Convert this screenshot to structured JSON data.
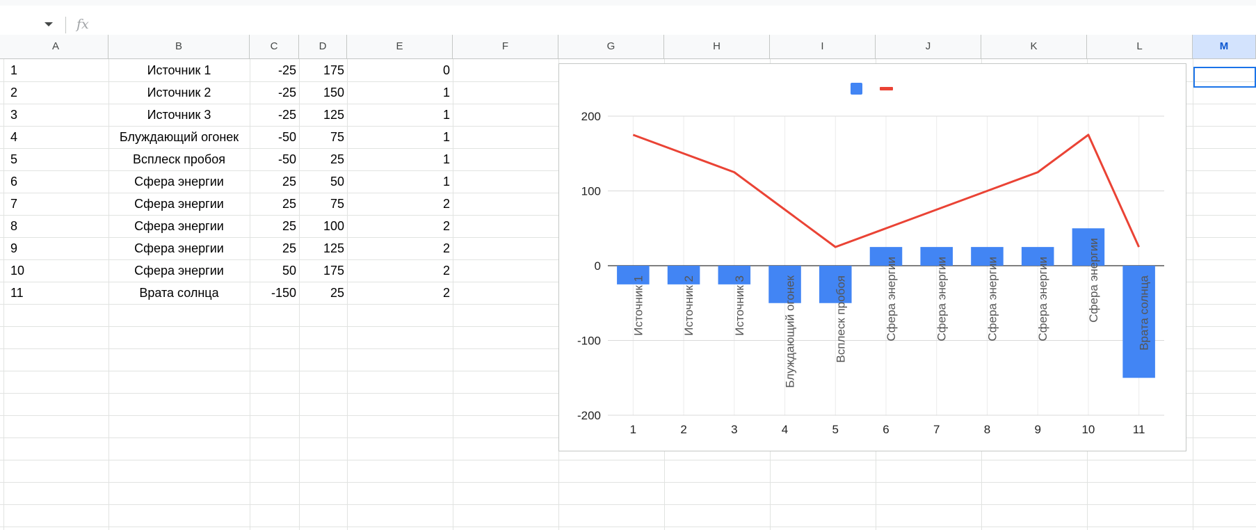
{
  "formula_bar": {
    "fx_label": "fx"
  },
  "columns": [
    "A",
    "B",
    "C",
    "D",
    "E",
    "F",
    "G",
    "H",
    "I",
    "J",
    "K",
    "L",
    "M"
  ],
  "selected_column": "M",
  "rows": [
    {
      "a": "1",
      "b": "Источник 1",
      "c": "-25",
      "d": "175",
      "e": "0"
    },
    {
      "a": "2",
      "b": "Источник 2",
      "c": "-25",
      "d": "150",
      "e": "1"
    },
    {
      "a": "3",
      "b": "Источник 3",
      "c": "-25",
      "d": "125",
      "e": "1"
    },
    {
      "a": "4",
      "b": "Блуждающий огонек",
      "c": "-50",
      "d": "75",
      "e": "1"
    },
    {
      "a": "5",
      "b": "Всплеск пробоя",
      "c": "-50",
      "d": "25",
      "e": "1"
    },
    {
      "a": "6",
      "b": "Сфера энергии",
      "c": "25",
      "d": "50",
      "e": "1"
    },
    {
      "a": "7",
      "b": "Сфера энергии",
      "c": "25",
      "d": "75",
      "e": "2"
    },
    {
      "a": "8",
      "b": "Сфера энергии",
      "c": "25",
      "d": "100",
      "e": "2"
    },
    {
      "a": "9",
      "b": "Сфера энергии",
      "c": "25",
      "d": "125",
      "e": "2"
    },
    {
      "a": "10",
      "b": "Сфера энергии",
      "c": "50",
      "d": "175",
      "e": "2"
    },
    {
      "a": "11",
      "b": "Врата солнца",
      "c": "-150",
      "d": "25",
      "e": "2"
    }
  ],
  "chart_data": {
    "type": "bar",
    "x": [
      "1",
      "2",
      "3",
      "4",
      "5",
      "6",
      "7",
      "8",
      "9",
      "10",
      "11"
    ],
    "series": [
      {
        "kind": "bar",
        "color": "#4285f4",
        "values": [
          -25,
          -25,
          -25,
          -50,
          -50,
          25,
          25,
          25,
          25,
          50,
          -150
        ]
      },
      {
        "kind": "line",
        "color": "#ea4335",
        "values": [
          175,
          150,
          125,
          75,
          25,
          50,
          75,
          100,
          125,
          175,
          25
        ]
      }
    ],
    "bar_labels": [
      "Источник 1",
      "Источник 2",
      "Источник 3",
      "Блуждающий огонек",
      "Всплеск пробоя",
      "Сфера энергии",
      "Сфера энергии",
      "Сфера энергии",
      "Сфера энергии",
      "Сфера энергии",
      "Врата солнца"
    ],
    "yticks": [
      "200",
      "100",
      "0",
      "-100",
      "-200"
    ],
    "ylim": [
      -200,
      200
    ],
    "grid": true,
    "legend": "top-center"
  }
}
